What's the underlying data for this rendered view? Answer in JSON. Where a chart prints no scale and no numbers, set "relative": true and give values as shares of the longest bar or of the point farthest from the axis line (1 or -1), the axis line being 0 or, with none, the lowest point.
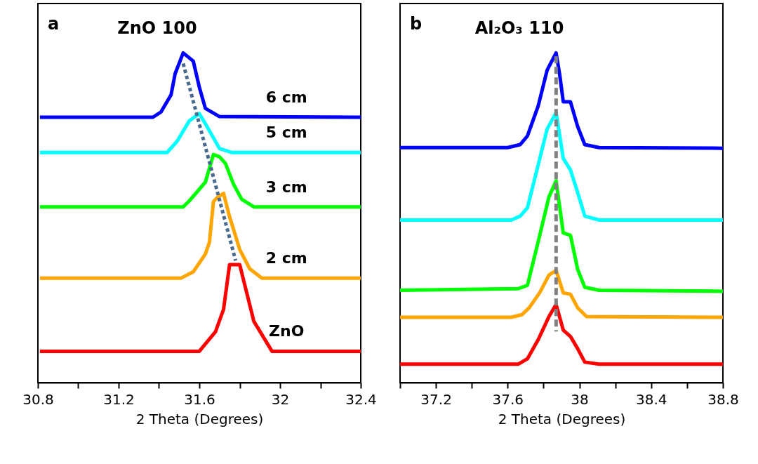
{
  "chart_data": [
    {
      "type": "line",
      "title": "ZnO 100",
      "xlabel": "2 Theta (Degrees)",
      "relative": true,
      "annotations": [
        "a"
      ],
      "xlim": [
        30.8,
        32.4
      ],
      "xticks": [
        30.8,
        {
          "value": 31.0,
          "label": null
        },
        31.2,
        {
          "value": 31.4,
          "label": null
        },
        31.6,
        {
          "value": 31.8,
          "label": null
        },
        32.0,
        {
          "value": 32.2,
          "label": null
        },
        32.4
      ],
      "series": [
        {
          "name": "6 cm",
          "color": "#0000ff",
          "x": [
            30.81,
            31.37,
            31.41,
            31.46,
            31.48,
            31.52,
            31.57,
            31.6,
            31.63,
            31.7,
            32.4
          ],
          "values": [
            0.805,
            0.805,
            0.821,
            0.873,
            0.937,
            1.0,
            0.975,
            0.896,
            0.832,
            0.807,
            0.805
          ]
        },
        {
          "name": "5 cm",
          "color": "#00ffff",
          "x": [
            30.81,
            31.44,
            31.49,
            31.55,
            31.6,
            31.65,
            31.7,
            31.76,
            32.4
          ],
          "values": [
            0.698,
            0.698,
            0.732,
            0.794,
            0.816,
            0.764,
            0.71,
            0.698,
            0.698
          ]
        },
        {
          "name": "3 cm",
          "color": "#00ff00",
          "x": [
            30.81,
            31.52,
            31.55,
            31.63,
            31.67,
            31.7,
            31.73,
            31.77,
            31.81,
            31.87,
            32.4
          ],
          "values": [
            0.533,
            0.533,
            0.551,
            0.608,
            0.692,
            0.685,
            0.664,
            0.601,
            0.556,
            0.533,
            0.533
          ]
        },
        {
          "name": "2 cm",
          "color": "#ffa500",
          "x": [
            30.81,
            31.51,
            31.57,
            31.63,
            31.65,
            31.67,
            31.69,
            31.72,
            31.75,
            31.8,
            31.85,
            31.91,
            32.4
          ],
          "values": [
            0.317,
            0.317,
            0.336,
            0.39,
            0.426,
            0.549,
            0.562,
            0.574,
            0.503,
            0.404,
            0.345,
            0.317,
            0.317
          ]
        },
        {
          "name": "ZnO",
          "color": "#ff0000",
          "x": [
            30.81,
            31.6,
            31.68,
            31.72,
            31.75,
            31.8,
            31.87,
            31.96,
            32.4
          ],
          "values": [
            0.095,
            0.095,
            0.154,
            0.222,
            0.358,
            0.358,
            0.186,
            0.095,
            0.095
          ]
        },
        {
          "type": "line",
          "color": "#4a6a90",
          "line_style": "dotted",
          "x": [
            31.52,
            31.78
          ],
          "values": [
            0.968,
            0.37
          ]
        }
      ]
    },
    {
      "type": "line",
      "title": "Al₂O₃ 110",
      "xlabel": "2 Theta (Degrees)",
      "relative": true,
      "annotations": [
        "b"
      ],
      "xlim": [
        37.0,
        38.8
      ],
      "xticks": [
        {
          "value": 37.0,
          "label": null
        },
        37.2,
        {
          "value": 37.4,
          "label": null
        },
        37.6,
        {
          "value": 37.8,
          "label": null
        },
        38.0,
        {
          "value": 38.2,
          "label": null
        },
        38.4,
        {
          "value": 38.6,
          "label": null
        },
        38.8
      ],
      "series": [
        {
          "color": "#0000ff",
          "x": [
            37.0,
            37.6,
            37.67,
            37.71,
            37.77,
            37.82,
            37.87,
            37.89,
            37.91,
            37.95,
            37.99,
            38.03,
            38.11,
            38.8
          ],
          "values": [
            0.713,
            0.713,
            0.722,
            0.748,
            0.839,
            0.948,
            1.0,
            0.934,
            0.852,
            0.852,
            0.777,
            0.722,
            0.713,
            0.711
          ]
        },
        {
          "color": "#00ffff",
          "x": [
            37.0,
            37.62,
            37.67,
            37.71,
            37.77,
            37.82,
            37.87,
            37.91,
            37.95,
            37.99,
            38.03,
            38.11,
            38.8
          ],
          "values": [
            0.493,
            0.493,
            0.505,
            0.53,
            0.66,
            0.769,
            0.819,
            0.68,
            0.645,
            0.577,
            0.505,
            0.493,
            0.493
          ]
        },
        {
          "color": "#00ff00",
          "x": [
            37.0,
            37.66,
            37.71,
            37.77,
            37.83,
            37.87,
            37.91,
            37.95,
            37.99,
            38.03,
            38.11,
            38.8
          ],
          "values": [
            0.28,
            0.285,
            0.295,
            0.427,
            0.563,
            0.612,
            0.454,
            0.447,
            0.344,
            0.289,
            0.28,
            0.277
          ]
        },
        {
          "color": "#ffa500",
          "x": [
            37.0,
            37.62,
            37.68,
            37.72,
            37.78,
            37.83,
            37.87,
            37.91,
            37.95,
            37.99,
            38.04,
            38.8
          ],
          "values": [
            0.198,
            0.198,
            0.206,
            0.227,
            0.274,
            0.326,
            0.34,
            0.272,
            0.268,
            0.227,
            0.2,
            0.198
          ]
        },
        {
          "color": "#ff0000",
          "x": [
            37.0,
            37.66,
            37.71,
            37.77,
            37.83,
            37.87,
            37.91,
            37.95,
            37.99,
            38.03,
            38.11,
            38.8
          ],
          "values": [
            0.056,
            0.056,
            0.072,
            0.13,
            0.2,
            0.237,
            0.159,
            0.14,
            0.103,
            0.062,
            0.056,
            0.056
          ]
        },
        {
          "type": "line",
          "color": "#808080",
          "line_style": "dashed",
          "x": [
            37.87,
            37.87
          ],
          "values": [
            0.99,
            0.155
          ]
        }
      ]
    }
  ]
}
